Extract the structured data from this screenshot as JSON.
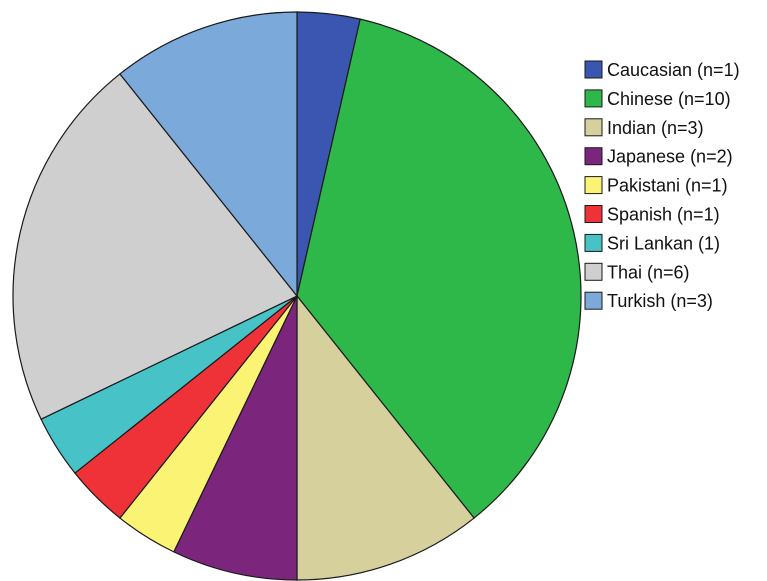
{
  "chart_data": {
    "type": "pie",
    "title": "",
    "start_angle_deg": 0,
    "direction": "clockwise",
    "slices": [
      {
        "label": "Caucasian (n=1)",
        "value": 1,
        "color": "#3b56b0"
      },
      {
        "label": "Chinese (n=10)",
        "value": 10,
        "color": "#2fb84a"
      },
      {
        "label": "Indian (n=3)",
        "value": 3,
        "color": "#d6d09d"
      },
      {
        "label": "Japanese (n=2)",
        "value": 2,
        "color": "#7b267c"
      },
      {
        "label": "Pakistani (n=1)",
        "value": 1,
        "color": "#faf373"
      },
      {
        "label": "Spanish (n=1)",
        "value": 1,
        "color": "#ee3238"
      },
      {
        "label": "Sri Lankan (1)",
        "value": 1,
        "color": "#47c2c7"
      },
      {
        "label": "Thai (n=6)",
        "value": 6,
        "color": "#cfcfcf"
      },
      {
        "label": "Turkish (n=3)",
        "value": 3,
        "color": "#7ba9da"
      }
    ],
    "legend": "right"
  }
}
